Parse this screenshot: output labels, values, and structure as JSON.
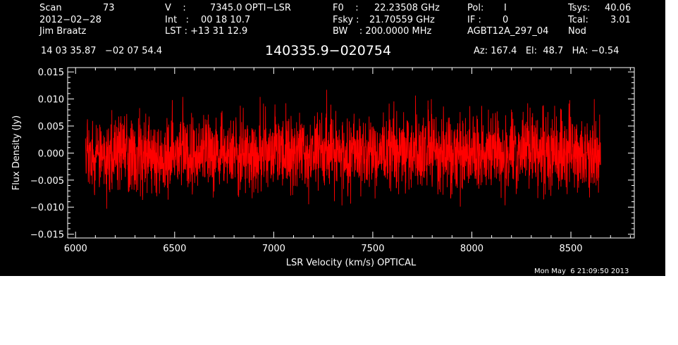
{
  "header": {
    "row1": [
      {
        "key": "scan_label",
        "text": "Scan"
      },
      {
        "key": "scan_value",
        "text": "73"
      },
      {
        "key": "vel_label",
        "text": "V    :"
      },
      {
        "key": "vel_value",
        "text": "7345.0 OPTI−LSR"
      },
      {
        "key": "f0_label",
        "text": "F0    :"
      },
      {
        "key": "f0_value",
        "text": "22.23508 GHz"
      },
      {
        "key": "pol_label",
        "text": "Pol:"
      },
      {
        "key": "pol_value",
        "text": "I"
      },
      {
        "key": "tsys_label",
        "text": "Tsys:"
      },
      {
        "key": "tsys_value",
        "text": "40.06"
      }
    ],
    "row2": [
      {
        "key": "date",
        "text": "2012−02−28"
      },
      {
        "key": "int_label",
        "text": "Int   :"
      },
      {
        "key": "int_value",
        "text": "00 18 10.7"
      },
      {
        "key": "fsky_label",
        "text": "Fsky :"
      },
      {
        "key": "fsky_value",
        "text": "21.70559 GHz"
      },
      {
        "key": "if_label",
        "text": "IF :"
      },
      {
        "key": "if_value",
        "text": "0"
      },
      {
        "key": "tcal_label",
        "text": "Tcal:"
      },
      {
        "key": "tcal_value",
        "text": "3.01"
      }
    ],
    "row3": [
      {
        "key": "observer",
        "text": "Jim Braatz"
      },
      {
        "key": "lst",
        "text": "LST : +13 31 12.9"
      },
      {
        "key": "bw",
        "text": "BW    : 200.0000 MHz"
      },
      {
        "key": "project",
        "text": "AGBT12A_297_04"
      },
      {
        "key": "mode",
        "text": "Nod"
      }
    ],
    "coords": "14 03 35.87   −02 07 54.4",
    "source": "140335.9−020754",
    "azelha": "Az: 167.4   El:  48.7   HA: −0.54"
  },
  "timestamp": "Mon May  6 21:09:50 2013",
  "colors": {
    "background": "#000000",
    "axes": "#ffffff",
    "trace": "#ff0000"
  },
  "chart_data": {
    "type": "line",
    "title": "",
    "xlabel": "LSR Velocity (km/s) OPTICAL",
    "ylabel": "Flux Density (Jy)",
    "xlim": [
      5960,
      8820
    ],
    "ylim": [
      -0.0157,
      0.0158
    ],
    "xticks": [
      6000,
      6500,
      7000,
      7500,
      8000,
      8500
    ],
    "xtick_labels": [
      "6000",
      "6500",
      "7000",
      "7500",
      "8000",
      "8500"
    ],
    "yticks": [
      0.015,
      0.01,
      0.005,
      0.0,
      -0.005,
      -0.01,
      -0.015
    ],
    "ytick_labels": [
      "0.015",
      "0.010",
      "0.005",
      "0.000",
      "−0.005",
      "−0.010",
      "−0.015"
    ],
    "series": [
      {
        "color": "#ff0000",
        "x_start": 6050,
        "x_end": 8650,
        "n_channels": 2600,
        "mean": 0.0,
        "rms": 0.0035,
        "min": -0.0127,
        "max": 0.0122
      }
    ]
  }
}
